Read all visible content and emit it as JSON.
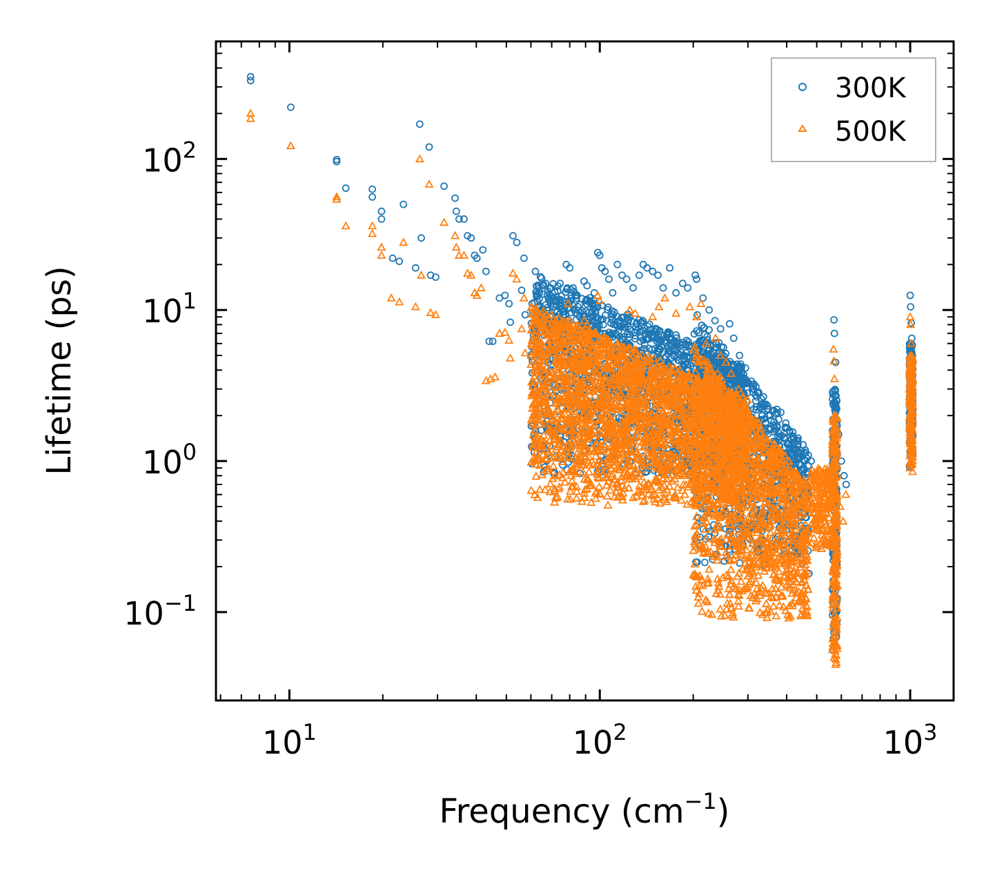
{
  "chart_data": {
    "type": "scatter",
    "xscale": "log",
    "yscale": "log",
    "xlabel": "Frequency (cm",
    "xlabel_sup": "−1",
    "xlabel_close": ")",
    "ylabel": "Lifetime (ps)",
    "xlim": [
      5.8,
      1380
    ],
    "ylim": [
      0.026,
      600
    ],
    "x_ticks": [
      {
        "value": 10,
        "base": "10",
        "exp": "1"
      },
      {
        "value": 100,
        "base": "10",
        "exp": "2"
      },
      {
        "value": 1000,
        "base": "10",
        "exp": "3"
      }
    ],
    "y_ticks": [
      {
        "value": 0.1,
        "base": "10",
        "exp": "−1"
      },
      {
        "value": 1,
        "base": "10",
        "exp": "0"
      },
      {
        "value": 10,
        "base": "10",
        "exp": "1"
      },
      {
        "value": 100,
        "base": "10",
        "exp": "2"
      }
    ],
    "legend_position": "top-right",
    "series": [
      {
        "name": "300K",
        "marker": "circle",
        "color": "#1f77b4",
        "points": [
          [
            7.5,
            350
          ],
          [
            7.5,
            330
          ],
          [
            10.1,
            220
          ],
          [
            14.2,
            99
          ],
          [
            14.2,
            96
          ],
          [
            15.2,
            64
          ],
          [
            18.5,
            63
          ],
          [
            18.5,
            56
          ],
          [
            19.8,
            45
          ],
          [
            19.8,
            40
          ],
          [
            21.5,
            22
          ],
          [
            22.6,
            21
          ],
          [
            23.3,
            50
          ],
          [
            25.5,
            19
          ],
          [
            26.3,
            170
          ],
          [
            26.6,
            30
          ],
          [
            28.2,
            120
          ],
          [
            28.5,
            17
          ],
          [
            29.6,
            16.5
          ],
          [
            31.5,
            66
          ],
          [
            34.2,
            55
          ],
          [
            34.5,
            45
          ],
          [
            35.2,
            40
          ],
          [
            36.5,
            40
          ],
          [
            37.5,
            31
          ],
          [
            38.5,
            30
          ],
          [
            39.5,
            23
          ],
          [
            40.2,
            22
          ],
          [
            42.0,
            25
          ],
          [
            43.0,
            18
          ],
          [
            44.0,
            6.2
          ],
          [
            45.2,
            6.2
          ],
          [
            47.5,
            12
          ],
          [
            49.5,
            12.5
          ],
          [
            51.0,
            11
          ],
          [
            51.5,
            8.3
          ],
          [
            52.5,
            31
          ],
          [
            54.0,
            28
          ],
          [
            56.0,
            13.5
          ],
          [
            57.0,
            22
          ],
          [
            57.5,
            9.3
          ],
          [
            60.5,
            11
          ],
          [
            62.0,
            18
          ],
          [
            63.5,
            5.2
          ],
          [
            65.0,
            3.8
          ],
          [
            66.0,
            3.7
          ],
          [
            67.5,
            7.6
          ],
          [
            68.5,
            12
          ],
          [
            69.5,
            11
          ],
          [
            71.0,
            10.5
          ],
          [
            72.5,
            8.5
          ],
          [
            74.5,
            15
          ],
          [
            75.5,
            10
          ],
          [
            78.0,
            20
          ],
          [
            80.0,
            19
          ],
          [
            80.5,
            11.5
          ],
          [
            82.0,
            14
          ],
          [
            84.5,
            12.5
          ],
          [
            85.5,
            2.7
          ],
          [
            86.5,
            5.5
          ],
          [
            89.0,
            15.5
          ],
          [
            91.0,
            14.5
          ],
          [
            93.0,
            11.5
          ],
          [
            96.0,
            13
          ],
          [
            98.5,
            24
          ],
          [
            100.0,
            23
          ],
          [
            101.5,
            19
          ],
          [
            104.0,
            18
          ],
          [
            107.0,
            16
          ],
          [
            110.0,
            13
          ],
          [
            114.0,
            20
          ],
          [
            118.0,
            17
          ],
          [
            122.0,
            16
          ],
          [
            128.0,
            14
          ],
          [
            134.0,
            17
          ],
          [
            138.0,
            20
          ],
          [
            142.0,
            19
          ],
          [
            148.0,
            18
          ],
          [
            154.0,
            17
          ],
          [
            160.0,
            14
          ],
          [
            168.0,
            19
          ],
          [
            176.0,
            13
          ],
          [
            185.0,
            15
          ],
          [
            192.0,
            14
          ],
          [
            203.0,
            17
          ],
          [
            205.0,
            16
          ],
          [
            215.0,
            12
          ],
          [
            225.0,
            10
          ],
          [
            235.0,
            8.5
          ],
          [
            245.0,
            7.5
          ],
          [
            262.0,
            8.1
          ],
          [
            270.0,
            6.5
          ],
          [
            282.0,
            5
          ],
          [
            300.0,
            3.3
          ],
          [
            318.0,
            2.5
          ],
          [
            338.0,
            1.9
          ],
          [
            350.0,
            2.0
          ],
          [
            372.0,
            2.2
          ],
          [
            383.0,
            2.1
          ],
          [
            395.0,
            1.4
          ],
          [
            410.0,
            1.2
          ],
          [
            425.0,
            0.9
          ],
          [
            438.0,
            0.55
          ],
          [
            450.0,
            0.32
          ],
          [
            458.0,
            1.0
          ],
          [
            465.0,
            0.85
          ],
          [
            472.0,
            0.18
          ],
          [
            480.0,
            1.0
          ],
          [
            492.0,
            0.8
          ],
          [
            510.0,
            0.7
          ],
          [
            540.0,
            0.65
          ],
          [
            565.0,
            1.2
          ],
          [
            568.0,
            8.6
          ],
          [
            570.0,
            7.0
          ],
          [
            575.0,
            4.5
          ],
          [
            580.0,
            2.5
          ],
          [
            588.0,
            1.5
          ],
          [
            600.0,
            1.0
          ],
          [
            612.0,
            0.8
          ],
          [
            622.0,
            0.7
          ],
          [
            1000.0,
            12.5
          ],
          [
            1003.0,
            10.5
          ],
          [
            1008.0,
            8.2
          ],
          [
            1012.0,
            6.5
          ],
          [
            1016.0,
            5.0
          ]
        ]
      },
      {
        "name": "500K",
        "marker": "triangle",
        "color": "#ff7f0e",
        "points": [
          [
            7.5,
            200
          ],
          [
            7.5,
            185
          ],
          [
            10.1,
            122
          ],
          [
            14.2,
            56
          ],
          [
            14.2,
            54
          ],
          [
            15.2,
            36
          ],
          [
            18.5,
            36
          ],
          [
            18.5,
            32
          ],
          [
            19.8,
            26
          ],
          [
            19.8,
            23
          ],
          [
            21.3,
            12
          ],
          [
            22.6,
            11.3
          ],
          [
            23.3,
            28
          ],
          [
            25.5,
            10.5
          ],
          [
            26.3,
            100
          ],
          [
            26.6,
            17
          ],
          [
            28.2,
            68
          ],
          [
            28.5,
            9.6
          ],
          [
            29.6,
            9.3
          ],
          [
            31.5,
            38
          ],
          [
            34.2,
            31
          ],
          [
            34.5,
            26
          ],
          [
            35.2,
            23
          ],
          [
            36.5,
            23
          ],
          [
            37.5,
            17.5
          ],
          [
            38.5,
            17
          ],
          [
            39.5,
            13
          ],
          [
            40.2,
            12.5
          ],
          [
            41.5,
            14
          ],
          [
            43.0,
            3.4
          ],
          [
            44.5,
            3.5
          ],
          [
            46.0,
            3.6
          ],
          [
            47.5,
            7
          ],
          [
            49.5,
            7.1
          ],
          [
            51.0,
            6.3
          ],
          [
            51.5,
            4.8
          ],
          [
            52.5,
            17.5
          ],
          [
            54.0,
            16
          ],
          [
            56.0,
            7.5
          ],
          [
            57.0,
            12
          ],
          [
            57.5,
            5.2
          ],
          [
            60.5,
            6.3
          ],
          [
            62.0,
            10
          ],
          [
            63.5,
            2.9
          ],
          [
            65.0,
            2.1
          ],
          [
            66.0,
            2.05
          ],
          [
            67.5,
            4.2
          ],
          [
            68.5,
            6.8
          ],
          [
            70.0,
            6.3
          ],
          [
            72.0,
            5.8
          ],
          [
            74.0,
            4.8
          ],
          [
            75.5,
            8.4
          ],
          [
            77.0,
            5.6
          ],
          [
            79.0,
            11
          ],
          [
            80.0,
            2.2
          ],
          [
            81.5,
            6.2
          ],
          [
            83.0,
            1.5
          ],
          [
            85.0,
            1.9
          ],
          [
            86.5,
            3.0
          ],
          [
            89.0,
            8.5
          ],
          [
            91.0,
            8.0
          ],
          [
            93.0,
            6.3
          ],
          [
            96.0,
            7.0
          ],
          [
            98.5,
            12.5
          ],
          [
            100.0,
            11.5
          ],
          [
            103.0,
            1.2
          ],
          [
            106.0,
            1.5
          ],
          [
            110.0,
            1.7
          ],
          [
            114.0,
            1.3
          ],
          [
            118.0,
            1.1
          ],
          [
            125.0,
            10
          ],
          [
            130.0,
            9.5
          ],
          [
            135.0,
            1.05
          ],
          [
            140.0,
            1.8
          ],
          [
            148.0,
            9
          ],
          [
            155.0,
            10.5
          ],
          [
            162.0,
            12
          ],
          [
            168.0,
            0.95
          ],
          [
            176.0,
            9.5
          ],
          [
            183.0,
            0.55
          ],
          [
            188.0,
            0.6
          ],
          [
            195.0,
            10.5
          ],
          [
            205.0,
            9
          ],
          [
            212.0,
            11
          ],
          [
            220.0,
            6
          ],
          [
            228.0,
            0.25
          ],
          [
            236.0,
            6.5
          ],
          [
            245.0,
            5.0
          ],
          [
            255.0,
            4.5
          ],
          [
            265.0,
            3.8
          ],
          [
            280.0,
            3.0
          ],
          [
            295.0,
            2.0
          ],
          [
            310.0,
            0.3
          ],
          [
            325.0,
            1.8
          ],
          [
            335.0,
            0.22
          ],
          [
            350.0,
            1.0
          ],
          [
            365.0,
            1.3
          ],
          [
            378.0,
            1.2
          ],
          [
            392.0,
            0.7
          ],
          [
            405.0,
            0.35
          ],
          [
            418.0,
            0.28
          ],
          [
            430.0,
            0.18
          ],
          [
            442.0,
            0.12
          ],
          [
            455.0,
            0.095
          ],
          [
            465.0,
            0.1
          ],
          [
            480.0,
            0.6
          ],
          [
            492.0,
            0.45
          ],
          [
            505.0,
            0.35
          ],
          [
            520.0,
            0.3
          ],
          [
            540.0,
            0.28
          ],
          [
            560.0,
            0.5
          ],
          [
            566.0,
            5.5
          ],
          [
            568.0,
            4.6
          ],
          [
            570.0,
            3.5
          ],
          [
            573.0,
            2.0
          ],
          [
            575.0,
            0.045
          ],
          [
            578.0,
            1.2
          ],
          [
            585.0,
            0.8
          ],
          [
            595.0,
            0.5
          ],
          [
            608.0,
            0.4
          ],
          [
            620.0,
            0.6
          ],
          [
            1000.0,
            9.0
          ],
          [
            1003.0,
            8.0
          ],
          [
            1008.0,
            6.0
          ],
          [
            1012.0,
            4.5
          ],
          [
            1016.0,
            3.5
          ],
          [
            1018.0,
            0.85
          ]
        ]
      }
    ],
    "dense_bands": [
      {
        "series": "300K",
        "x_from": 60,
        "x_to": 300,
        "y_from": 0.8,
        "y_to": 18,
        "n": 1600,
        "slope": -0.9
      },
      {
        "series": "300K",
        "x_from": 200,
        "x_to": 470,
        "y_from": 0.2,
        "y_to": 10,
        "n": 900,
        "slope": -2.5
      },
      {
        "series": "300K",
        "x_from": 562,
        "x_to": 582,
        "y_from": 0.05,
        "y_to": 3.0,
        "n": 160,
        "slope": 0
      },
      {
        "series": "300K",
        "x_from": 995,
        "x_to": 1020,
        "y_from": 0.9,
        "y_to": 6.0,
        "n": 160,
        "slope": 0
      },
      {
        "series": "500K",
        "x_from": 60,
        "x_to": 300,
        "y_from": 0.5,
        "y_to": 11,
        "n": 2200,
        "slope": -0.9
      },
      {
        "series": "500K",
        "x_from": 200,
        "x_to": 470,
        "y_from": 0.09,
        "y_to": 6,
        "n": 1200,
        "slope": -2.5
      },
      {
        "series": "500K",
        "x_from": 480,
        "x_to": 560,
        "y_from": 0.25,
        "y_to": 0.9,
        "n": 160,
        "slope": 0
      },
      {
        "series": "500K",
        "x_from": 562,
        "x_to": 582,
        "y_from": 0.043,
        "y_to": 2.0,
        "n": 220,
        "slope": 0
      },
      {
        "series": "500K",
        "x_from": 995,
        "x_to": 1020,
        "y_from": 0.85,
        "y_to": 5.0,
        "n": 200,
        "slope": 0
      }
    ]
  }
}
